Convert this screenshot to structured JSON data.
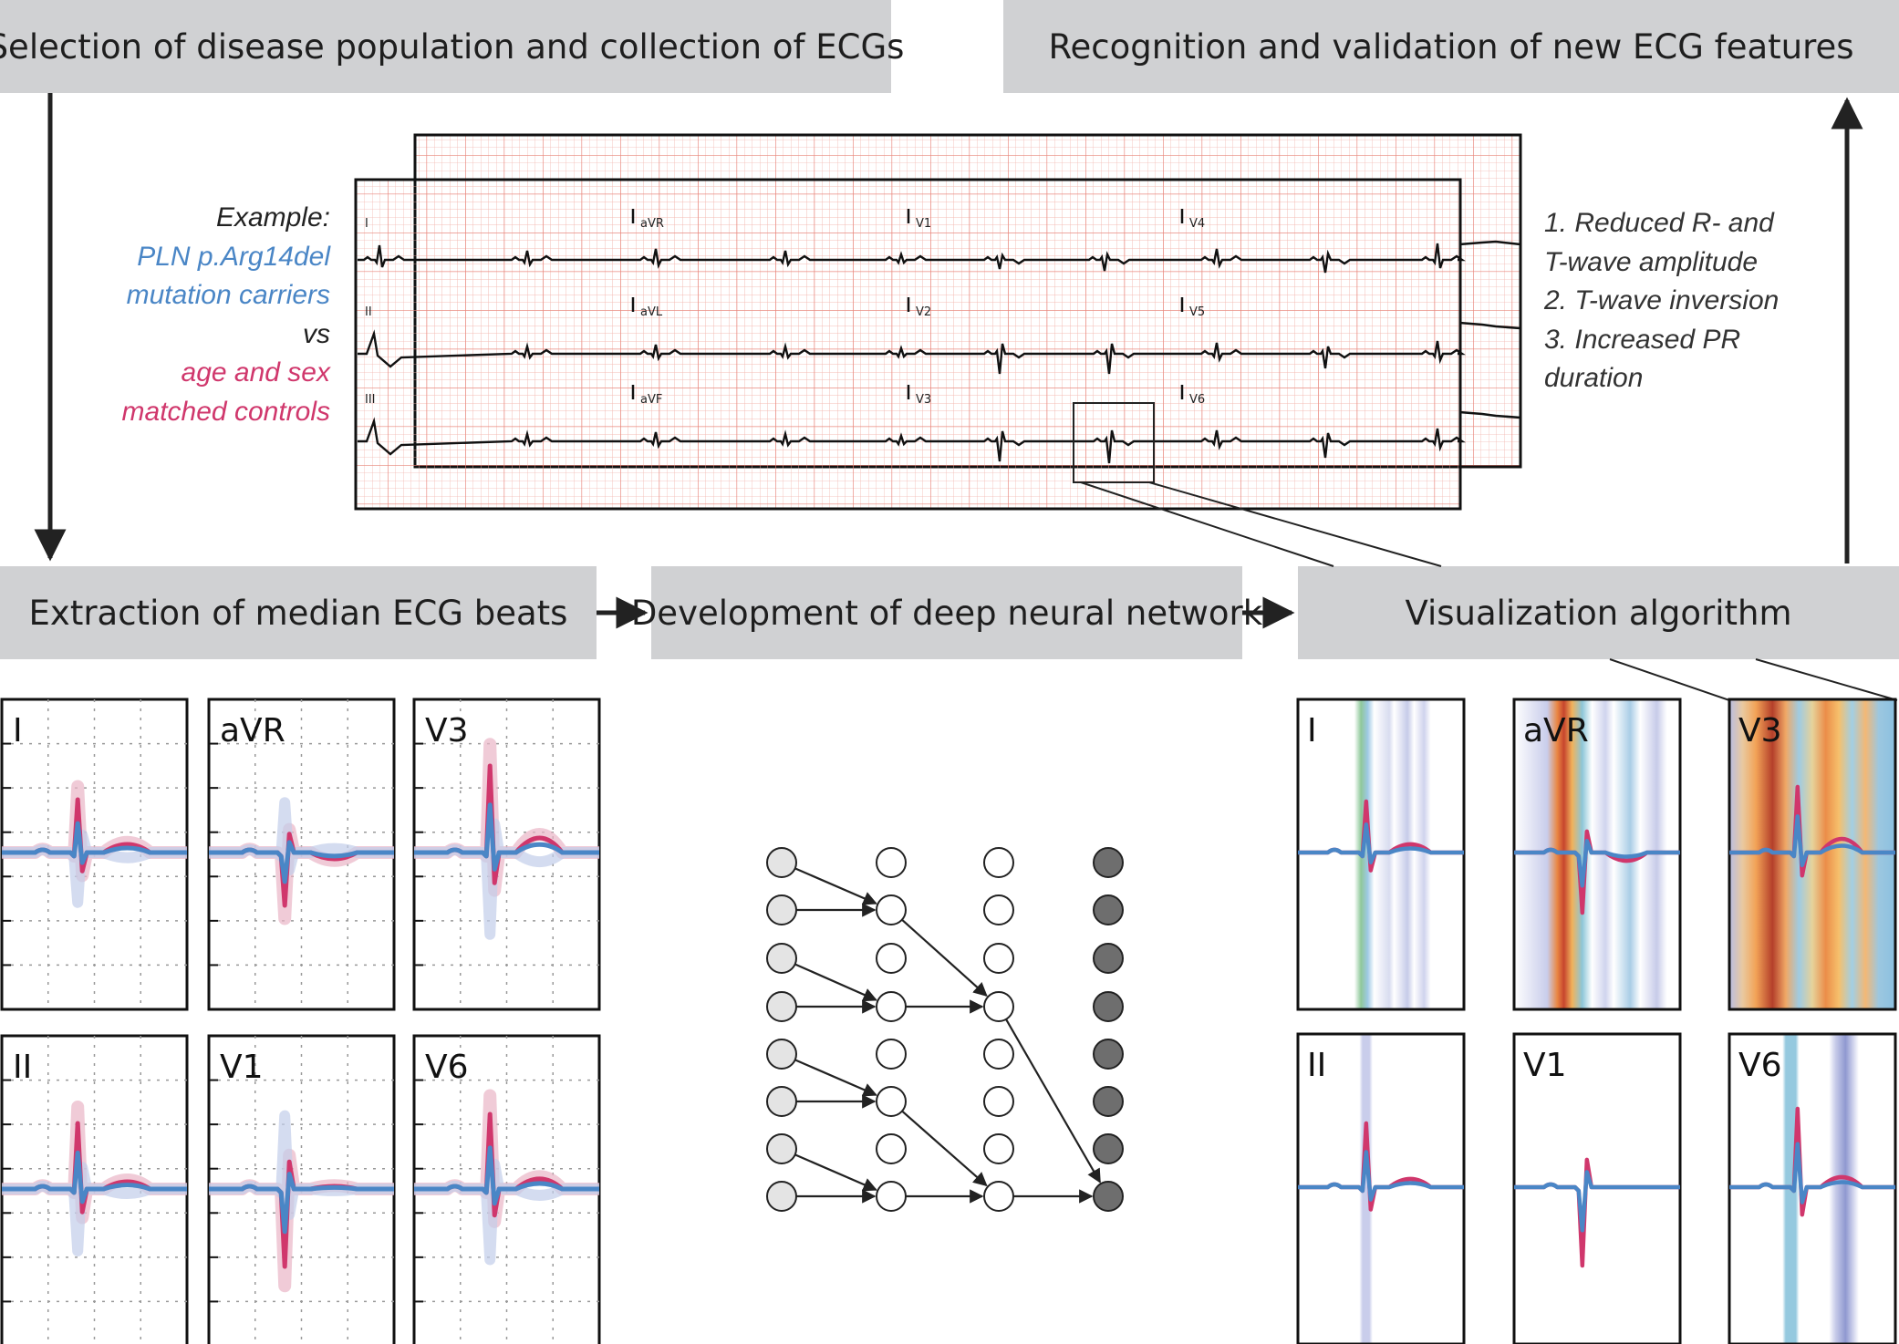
{
  "boxes": {
    "selection": "Selection of disease population and collection of ECGs",
    "recognition": "Recognition and validation of new ECG features",
    "extraction": "Extraction of median ECG beats",
    "development": "Development of deep neural network",
    "visualization": "Visualization algorithm"
  },
  "example": {
    "label": "Example:",
    "line1": "PLN p.Arg14del",
    "line2": "mutation carriers",
    "vs": "vs",
    "line3": "age and sex",
    "line4": "matched controls"
  },
  "features": {
    "f1a": "1. Reduced R- and",
    "f1b": "T-wave  amplitude",
    "f2": "2. T-wave inversion",
    "f3a": "3. Increased PR",
    "f3b": "duration"
  },
  "ecg_leads": [
    "I",
    "aVR",
    "V1",
    "V4",
    "II",
    "aVL",
    "V2",
    "V5",
    "III",
    "aVF",
    "V3",
    "V6"
  ],
  "median_panels": [
    "I",
    "aVR",
    "V3",
    "II",
    "V1",
    "V6"
  ],
  "visual_panels": [
    "I",
    "aVR",
    "V3",
    "II",
    "V1",
    "V6"
  ],
  "colors": {
    "box": "#d0d1d3",
    "carrier": "#4a86c6",
    "control": "#d0376c",
    "grid": "#f0a8a0",
    "node_input": "#e4e4e4",
    "node_output": "#6e6e6e"
  }
}
